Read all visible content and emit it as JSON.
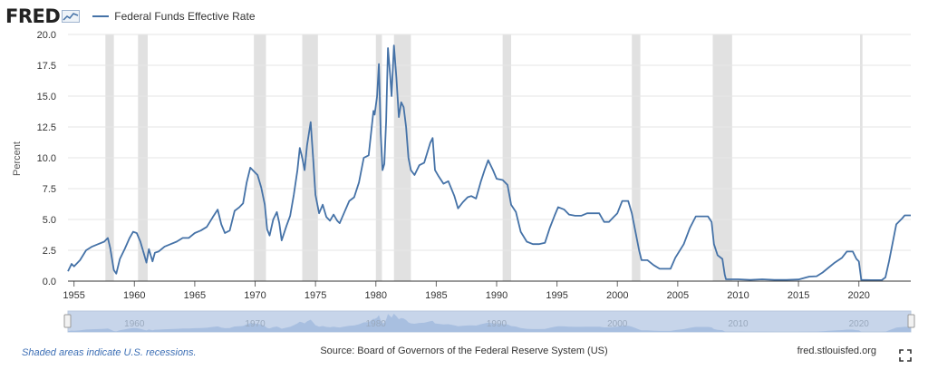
{
  "header": {
    "logo_text": "FRED",
    "logo_icon": "fred-chart-icon",
    "legend_label": "Federal Funds Effective Rate"
  },
  "colors": {
    "line": "#4572a7",
    "recession": "#e1e1e1",
    "navigator_fill": "#a8bfe0",
    "navigator_mask": "#c7d5ea",
    "note_link": "#3d6fb5"
  },
  "footer": {
    "note": "Shaded areas indicate U.S. recessions.",
    "source": "Source: Board of Governors of the Federal Reserve System (US)",
    "site": "fred.stlouisfed.org",
    "fullscreen_icon": "fullscreen-icon"
  },
  "navigator": {
    "tick_labels": [
      "1960",
      "1970",
      "1980",
      "1990",
      "2000",
      "2010",
      "2020"
    ]
  },
  "chart_data": {
    "type": "line",
    "title": "",
    "xlabel": "",
    "ylabel": "Percent",
    "xlim": [
      1954.5,
      2024.3
    ],
    "ylim": [
      0,
      20
    ],
    "yticks": [
      0.0,
      2.5,
      5.0,
      7.5,
      10.0,
      12.5,
      15.0,
      17.5,
      20.0
    ],
    "ytick_labels": [
      "0.0",
      "2.5",
      "5.0",
      "7.5",
      "10.0",
      "12.5",
      "15.0",
      "17.5",
      "20.0"
    ],
    "xticks": [
      1955,
      1960,
      1965,
      1970,
      1975,
      1980,
      1985,
      1990,
      1995,
      2000,
      2005,
      2010,
      2015,
      2020
    ],
    "xtick_labels": [
      "1955",
      "1960",
      "1965",
      "1970",
      "1975",
      "1980",
      "1985",
      "1990",
      "1995",
      "2000",
      "2005",
      "2010",
      "2015",
      "2020"
    ],
    "grid": "horizontal",
    "recessions": [
      [
        1957.6,
        1958.3
      ],
      [
        1960.3,
        1961.1
      ],
      [
        1969.9,
        1970.9
      ],
      [
        1973.9,
        1975.2
      ],
      [
        1980.0,
        1980.5
      ],
      [
        1981.5,
        1982.9
      ],
      [
        1990.5,
        1991.2
      ],
      [
        2001.2,
        2001.9
      ],
      [
        2007.9,
        2009.5
      ],
      [
        2020.1,
        2020.3
      ]
    ],
    "series": [
      {
        "name": "Federal Funds Effective Rate",
        "points": [
          [
            1954.5,
            0.8
          ],
          [
            1954.8,
            1.4
          ],
          [
            1955.0,
            1.2
          ],
          [
            1955.5,
            1.7
          ],
          [
            1956.0,
            2.5
          ],
          [
            1956.5,
            2.8
          ],
          [
            1957.0,
            3.0
          ],
          [
            1957.5,
            3.2
          ],
          [
            1957.8,
            3.5
          ],
          [
            1958.0,
            2.7
          ],
          [
            1958.3,
            0.9
          ],
          [
            1958.5,
            0.6
          ],
          [
            1958.8,
            1.8
          ],
          [
            1959.2,
            2.6
          ],
          [
            1959.6,
            3.5
          ],
          [
            1959.9,
            4.0
          ],
          [
            1960.2,
            3.9
          ],
          [
            1960.5,
            3.2
          ],
          [
            1960.8,
            2.2
          ],
          [
            1961.0,
            1.5
          ],
          [
            1961.2,
            2.6
          ],
          [
            1961.5,
            1.6
          ],
          [
            1961.7,
            2.3
          ],
          [
            1962.0,
            2.4
          ],
          [
            1962.5,
            2.8
          ],
          [
            1963.0,
            3.0
          ],
          [
            1963.5,
            3.2
          ],
          [
            1964.0,
            3.5
          ],
          [
            1964.5,
            3.5
          ],
          [
            1965.0,
            3.9
          ],
          [
            1965.5,
            4.1
          ],
          [
            1966.0,
            4.4
          ],
          [
            1966.5,
            5.2
          ],
          [
            1966.9,
            5.8
          ],
          [
            1967.2,
            4.6
          ],
          [
            1967.5,
            3.9
          ],
          [
            1967.9,
            4.1
          ],
          [
            1968.3,
            5.7
          ],
          [
            1968.7,
            6.0
          ],
          [
            1969.0,
            6.3
          ],
          [
            1969.3,
            8.0
          ],
          [
            1969.6,
            9.2
          ],
          [
            1969.9,
            8.9
          ],
          [
            1970.2,
            8.6
          ],
          [
            1970.5,
            7.6
          ],
          [
            1970.8,
            6.2
          ],
          [
            1971.0,
            4.2
          ],
          [
            1971.2,
            3.7
          ],
          [
            1971.5,
            5.0
          ],
          [
            1971.8,
            5.6
          ],
          [
            1972.0,
            4.7
          ],
          [
            1972.2,
            3.3
          ],
          [
            1972.6,
            4.5
          ],
          [
            1972.9,
            5.3
          ],
          [
            1973.2,
            7.0
          ],
          [
            1973.5,
            9.0
          ],
          [
            1973.7,
            10.8
          ],
          [
            1973.9,
            10.0
          ],
          [
            1974.1,
            9.0
          ],
          [
            1974.3,
            11.0
          ],
          [
            1974.6,
            12.9
          ],
          [
            1974.8,
            10.0
          ],
          [
            1975.0,
            7.0
          ],
          [
            1975.3,
            5.5
          ],
          [
            1975.6,
            6.2
          ],
          [
            1975.9,
            5.2
          ],
          [
            1976.2,
            4.9
          ],
          [
            1976.5,
            5.4
          ],
          [
            1976.8,
            4.9
          ],
          [
            1977.0,
            4.7
          ],
          [
            1977.4,
            5.6
          ],
          [
            1977.8,
            6.5
          ],
          [
            1978.2,
            6.8
          ],
          [
            1978.6,
            8.0
          ],
          [
            1979.0,
            10.0
          ],
          [
            1979.4,
            10.2
          ],
          [
            1979.8,
            13.8
          ],
          [
            1979.9,
            13.5
          ],
          [
            1980.1,
            15.0
          ],
          [
            1980.25,
            17.6
          ],
          [
            1980.4,
            12.0
          ],
          [
            1980.55,
            9.0
          ],
          [
            1980.7,
            9.5
          ],
          [
            1980.85,
            13.0
          ],
          [
            1981.0,
            18.9
          ],
          [
            1981.2,
            16.5
          ],
          [
            1981.3,
            15.0
          ],
          [
            1981.5,
            19.1
          ],
          [
            1981.7,
            16.5
          ],
          [
            1981.9,
            13.3
          ],
          [
            1982.1,
            14.5
          ],
          [
            1982.3,
            14.1
          ],
          [
            1982.5,
            12.5
          ],
          [
            1982.7,
            10.0
          ],
          [
            1982.9,
            9.0
          ],
          [
            1983.2,
            8.6
          ],
          [
            1983.6,
            9.4
          ],
          [
            1984.0,
            9.6
          ],
          [
            1984.5,
            11.2
          ],
          [
            1984.7,
            11.6
          ],
          [
            1984.9,
            9.0
          ],
          [
            1985.2,
            8.5
          ],
          [
            1985.6,
            7.9
          ],
          [
            1986.0,
            8.1
          ],
          [
            1986.5,
            6.9
          ],
          [
            1986.8,
            5.9
          ],
          [
            1987.2,
            6.4
          ],
          [
            1987.6,
            6.8
          ],
          [
            1987.9,
            6.9
          ],
          [
            1988.3,
            6.7
          ],
          [
            1988.7,
            8.1
          ],
          [
            1989.0,
            9.0
          ],
          [
            1989.3,
            9.8
          ],
          [
            1989.7,
            9.0
          ],
          [
            1990.0,
            8.3
          ],
          [
            1990.5,
            8.2
          ],
          [
            1990.9,
            7.8
          ],
          [
            1991.2,
            6.2
          ],
          [
            1991.6,
            5.6
          ],
          [
            1992.0,
            4.0
          ],
          [
            1992.5,
            3.2
          ],
          [
            1993.0,
            3.0
          ],
          [
            1993.5,
            3.0
          ],
          [
            1994.0,
            3.1
          ],
          [
            1994.4,
            4.3
          ],
          [
            1994.8,
            5.3
          ],
          [
            1995.1,
            6.0
          ],
          [
            1995.6,
            5.8
          ],
          [
            1996.0,
            5.4
          ],
          [
            1996.5,
            5.3
          ],
          [
            1997.0,
            5.3
          ],
          [
            1997.5,
            5.5
          ],
          [
            1998.0,
            5.5
          ],
          [
            1998.5,
            5.5
          ],
          [
            1998.9,
            4.8
          ],
          [
            1999.3,
            4.8
          ],
          [
            1999.7,
            5.2
          ],
          [
            2000.0,
            5.5
          ],
          [
            2000.4,
            6.5
          ],
          [
            2000.9,
            6.5
          ],
          [
            2001.2,
            5.5
          ],
          [
            2001.5,
            4.0
          ],
          [
            2001.8,
            2.5
          ],
          [
            2002.0,
            1.7
          ],
          [
            2002.5,
            1.7
          ],
          [
            2003.0,
            1.3
          ],
          [
            2003.5,
            1.0
          ],
          [
            2004.0,
            1.0
          ],
          [
            2004.4,
            1.0
          ],
          [
            2004.8,
            1.9
          ],
          [
            2005.5,
            3.0
          ],
          [
            2006.0,
            4.3
          ],
          [
            2006.5,
            5.25
          ],
          [
            2007.0,
            5.25
          ],
          [
            2007.5,
            5.25
          ],
          [
            2007.8,
            4.8
          ],
          [
            2008.0,
            3.0
          ],
          [
            2008.3,
            2.1
          ],
          [
            2008.7,
            1.8
          ],
          [
            2008.9,
            0.5
          ],
          [
            2009.0,
            0.15
          ],
          [
            2010.0,
            0.15
          ],
          [
            2011.0,
            0.1
          ],
          [
            2012.0,
            0.15
          ],
          [
            2013.0,
            0.1
          ],
          [
            2014.0,
            0.1
          ],
          [
            2015.0,
            0.13
          ],
          [
            2015.9,
            0.37
          ],
          [
            2016.5,
            0.4
          ],
          [
            2017.0,
            0.7
          ],
          [
            2017.5,
            1.1
          ],
          [
            2018.0,
            1.5
          ],
          [
            2018.6,
            1.9
          ],
          [
            2019.0,
            2.4
          ],
          [
            2019.5,
            2.4
          ],
          [
            2019.8,
            1.8
          ],
          [
            2020.0,
            1.6
          ],
          [
            2020.2,
            0.1
          ],
          [
            2021.0,
            0.08
          ],
          [
            2021.9,
            0.08
          ],
          [
            2022.2,
            0.3
          ],
          [
            2022.5,
            1.6
          ],
          [
            2022.8,
            3.1
          ],
          [
            2023.1,
            4.6
          ],
          [
            2023.6,
            5.1
          ],
          [
            2023.8,
            5.33
          ],
          [
            2024.3,
            5.33
          ]
        ]
      }
    ]
  }
}
